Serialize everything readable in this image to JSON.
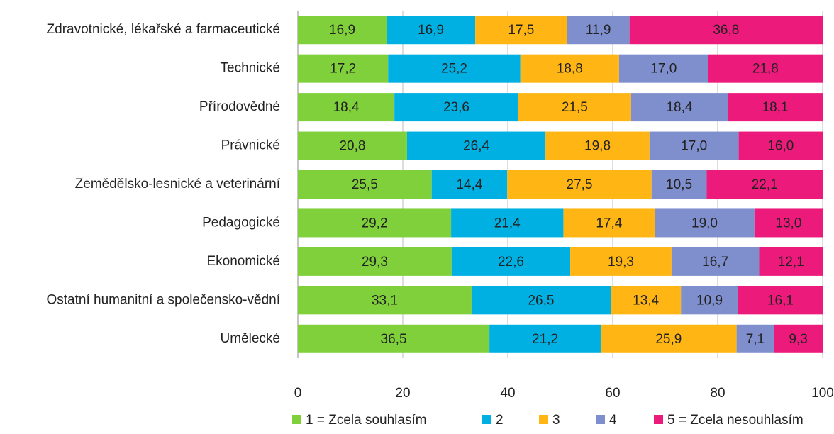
{
  "chart_data": {
    "type": "stacked-bar-horizontal",
    "categories": [
      "Zdravotnické, lékařské a farmaceutické",
      "Technické",
      "Přírodovědné",
      "Právnické",
      "Zemědělsko-lesnické a veterinární",
      "Pedagogické",
      "Ekonomické",
      "Ostatní humanitní a společensko-vědní",
      "Umělecké"
    ],
    "series": [
      {
        "name": "1 = Zcela souhlasím",
        "color": "#80d03c",
        "values": [
          16.9,
          17.2,
          18.4,
          20.8,
          25.5,
          29.2,
          29.3,
          33.1,
          36.5
        ],
        "value_labels": [
          "16,9",
          "17,2",
          "18,4",
          "20,8",
          "25,5",
          "29,2",
          "29,3",
          "33,1",
          "36,5"
        ]
      },
      {
        "name": "2",
        "color": "#00b0e2",
        "values": [
          16.9,
          25.2,
          23.6,
          26.4,
          14.4,
          21.4,
          22.6,
          26.5,
          21.2
        ],
        "value_labels": [
          "16,9",
          "25,2",
          "23,6",
          "26,4",
          "14,4",
          "21,4",
          "22,6",
          "26,5",
          "21,2"
        ]
      },
      {
        "name": "3",
        "color": "#ffb614",
        "values": [
          17.5,
          18.8,
          21.5,
          19.8,
          27.5,
          17.4,
          19.3,
          13.4,
          25.9
        ],
        "value_labels": [
          "17,5",
          "18,8",
          "21,5",
          "19,8",
          "27,5",
          "17,4",
          "19,3",
          "13,4",
          "25,9"
        ]
      },
      {
        "name": "4",
        "color": "#7f8fce",
        "values": [
          11.9,
          17.0,
          18.4,
          17.0,
          10.5,
          19.0,
          16.7,
          10.9,
          7.1
        ],
        "value_labels": [
          "11,9",
          "17,0",
          "18,4",
          "17,0",
          "10,5",
          "19,0",
          "16,7",
          "10,9",
          "7,1"
        ]
      },
      {
        "name": "5 = Zcela nesouhlasím",
        "color": "#ec1a7b",
        "values": [
          36.8,
          21.8,
          18.1,
          16.0,
          22.1,
          13.0,
          12.1,
          16.1,
          9.3
        ],
        "value_labels": [
          "36,8",
          "21,8",
          "18,1",
          "16,0",
          "22,1",
          "13,0",
          "12,1",
          "16,1",
          "9,3"
        ]
      }
    ],
    "xlim": [
      0,
      100
    ],
    "xticks": [
      0,
      20,
      40,
      60,
      80,
      100
    ],
    "grid": true
  }
}
